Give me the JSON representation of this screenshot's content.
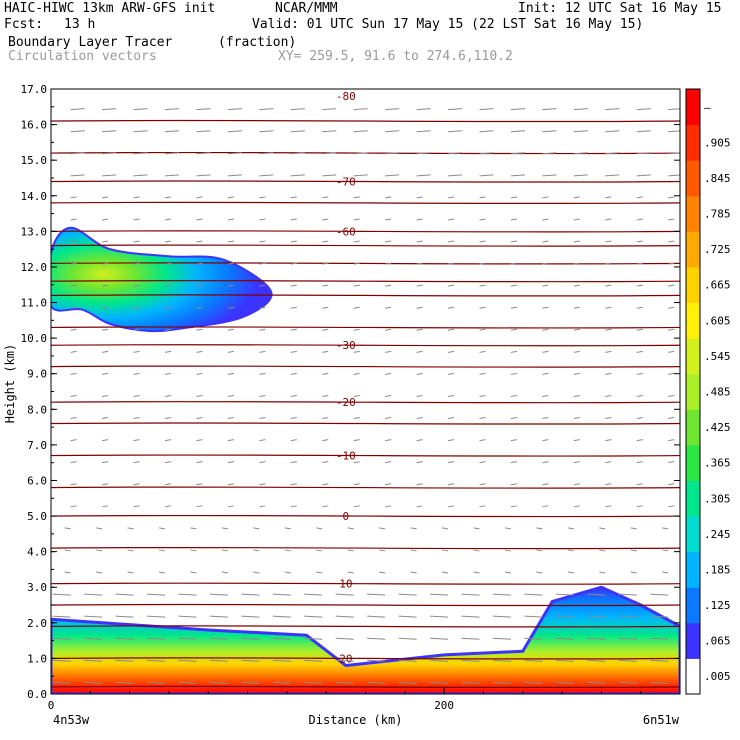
{
  "header": {
    "model": "HAIC-HIWC 13km ARW-GFS init",
    "org": "NCAR/MMM",
    "init": "Init: 12 UTC Sat 16 May 15",
    "fcst_label": "Fcst:",
    "fcst_value": "13 h",
    "valid": "Valid: 01 UTC Sun 17 May 15 (22 LST Sat 16 May 15)",
    "field": "Boundary Layer Tracer",
    "field_units": "(fraction)",
    "vectors": "Circulation vectors",
    "xy": "XY= 259.5, 91.6 to 274.6,110.2"
  },
  "chart_data": {
    "type": "heatmap",
    "title": "Boundary Layer Tracer",
    "ylabel": "Height (km)",
    "xlabel": "Distance (km)",
    "ylim": [
      0,
      17
    ],
    "xlim": [
      0,
      320
    ],
    "y_ticks": [
      "0.0",
      "1.0",
      "2.0",
      "3.0",
      "4.0",
      "5.0",
      "6.0",
      "7.0",
      "8.0",
      "9.0",
      "10.0",
      "11.0",
      "12.0",
      "13.0",
      "14.0",
      "15.0",
      "16.0",
      "17.0"
    ],
    "x_ticks": [
      "0",
      "200"
    ],
    "x_ends": {
      "left": "4n53w",
      "right": "6n51w"
    },
    "colorbar": {
      "labels": [
        ".005",
        ".065",
        ".125",
        ".185",
        ".245",
        ".305",
        ".365",
        ".425",
        ".485",
        ".545",
        ".605",
        ".665",
        ".725",
        ".785",
        ".845",
        ".905",
        "–"
      ],
      "colors": [
        "#ffffff",
        "#3c33ff",
        "#0a78ff",
        "#00b4ff",
        "#00dcd2",
        "#00e68c",
        "#2ce646",
        "#6ee632",
        "#aaf028",
        "#d2f01e",
        "#fff00a",
        "#ffd200",
        "#ffaa00",
        "#ff8200",
        "#ff5a00",
        "#ff2d00",
        "#ff0000"
      ]
    },
    "isotherms": [
      {
        "label": "-80",
        "y": 16.8
      },
      {
        "label": "-70",
        "y": 14.4
      },
      {
        "label": "-60",
        "y": 13.0
      },
      {
        "label": "-30",
        "y": 9.8
      },
      {
        "label": "-20",
        "y": 8.2
      },
      {
        "label": "-10",
        "y": 6.7
      },
      {
        "label": "0",
        "y": 5.0
      },
      {
        "label": "10",
        "y": 3.1
      },
      {
        "label": "20",
        "y": 1.0
      }
    ],
    "isotherm_levels": [
      0.2,
      1.0,
      1.9,
      2.5,
      3.1,
      4.1,
      5.0,
      5.8,
      6.7,
      7.6,
      8.2,
      9.2,
      9.8,
      10.3,
      11.2,
      11.6,
      12.1,
      12.6,
      13.0,
      13.8,
      14.4,
      15.2,
      16.1
    ],
    "upper_plume": {
      "core": [
        [
          0,
          12.4
        ],
        [
          10,
          13.1
        ],
        [
          30,
          12.5
        ],
        [
          60,
          12.3
        ],
        [
          88,
          12.2
        ],
        [
          112,
          11.3
        ],
        [
          98,
          10.6
        ],
        [
          70,
          10.3
        ],
        [
          50,
          10.2
        ],
        [
          30,
          10.4
        ],
        [
          16,
          10.8
        ],
        [
          0,
          10.9
        ]
      ],
      "max_value": 0.9
    },
    "boundary_layer": {
      "top_km": [
        [
          0,
          2.1
        ],
        [
          40,
          1.95
        ],
        [
          80,
          1.8
        ],
        [
          130,
          1.65
        ],
        [
          150,
          0.8
        ],
        [
          200,
          1.1
        ],
        [
          240,
          1.2
        ],
        [
          255,
          2.6
        ],
        [
          280,
          3.0
        ],
        [
          300,
          2.5
        ],
        [
          320,
          1.9
        ]
      ],
      "max_value": 0.95
    }
  }
}
